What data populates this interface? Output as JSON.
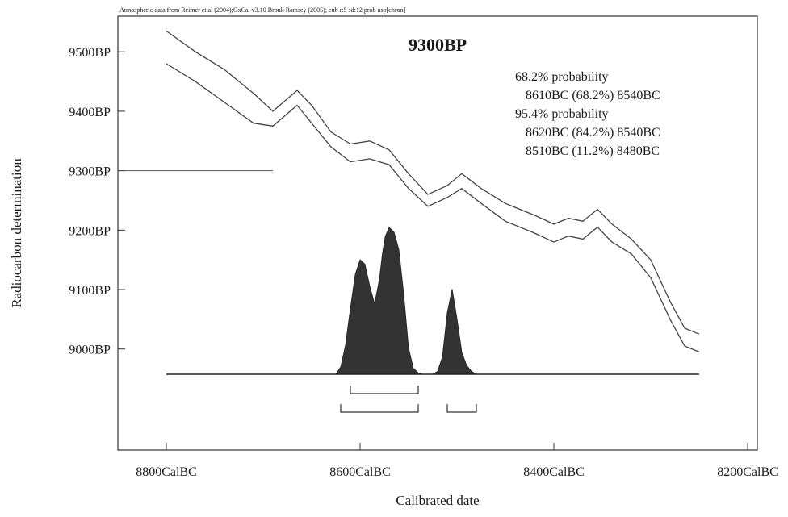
{
  "chart_data": {
    "type": "line",
    "credit": "Atmospheric data from Reimer et al (2004);OxCal v3.10 Bronk Ramsey (2005); cub r:5 sd:12 prob usp[chron]",
    "title": "9300BP",
    "xlabel": "Calibrated date",
    "ylabel": "Radiocarbon determination",
    "x_axis": {
      "domain": [
        8850,
        8190
      ],
      "reversed": true,
      "ticks": [
        8800,
        8600,
        8400,
        8200
      ],
      "tick_suffix": "CalBC"
    },
    "y_axis": {
      "domain": [
        8830,
        9560
      ],
      "ticks": [
        9000,
        9100,
        9200,
        9300,
        9400,
        9500
      ],
      "tick_suffix": "BP"
    },
    "stats": [
      {
        "text": "68.2% probability",
        "indent": false
      },
      {
        "text": "8610BC (68.2%) 8540BC",
        "indent": true
      },
      {
        "text": "95.4% probability",
        "indent": false
      },
      {
        "text": "8620BC (84.2%) 8540BC",
        "indent": true
      },
      {
        "text": "8510BC (11.2%) 8480BC",
        "indent": true
      }
    ],
    "measurement_bp": 9300,
    "measurement_line_end_bc": 8690,
    "curve": {
      "name": "calibration curve ±1σ",
      "x": [
        8800,
        8770,
        8740,
        8710,
        8690,
        8665,
        8650,
        8630,
        8610,
        8590,
        8570,
        8550,
        8530,
        8510,
        8495,
        8475,
        8450,
        8420,
        8400,
        8385,
        8370,
        8355,
        8340,
        8320,
        8300,
        8280,
        8265,
        8250
      ],
      "upper": [
        9535,
        9500,
        9470,
        9430,
        9400,
        9435,
        9410,
        9365,
        9345,
        9350,
        9335,
        9295,
        9260,
        9275,
        9295,
        9270,
        9245,
        9225,
        9210,
        9220,
        9215,
        9235,
        9210,
        9185,
        9150,
        9080,
        9035,
        9025
      ],
      "lower": [
        9480,
        9450,
        9415,
        9380,
        9375,
        9410,
        9380,
        9340,
        9315,
        9320,
        9310,
        9270,
        9240,
        9255,
        9270,
        9245,
        9215,
        9195,
        9180,
        9190,
        9185,
        9205,
        9180,
        9160,
        9120,
        9050,
        9005,
        8995
      ]
    },
    "distribution": {
      "baseline_x": [
        8800,
        8250
      ],
      "x": [
        8625,
        8620,
        8615,
        8610,
        8605,
        8600,
        8595,
        8590,
        8585,
        8580,
        8577,
        8574,
        8570,
        8565,
        8560,
        8555,
        8550,
        8545,
        8540,
        8535,
        8530,
        8525,
        8520,
        8515,
        8510,
        8505,
        8500,
        8495,
        8490,
        8485,
        8480,
        8475,
        8470
      ],
      "density": [
        0,
        0.05,
        0.2,
        0.45,
        0.68,
        0.78,
        0.75,
        0.6,
        0.48,
        0.65,
        0.82,
        0.94,
        1.0,
        0.97,
        0.85,
        0.55,
        0.18,
        0.04,
        0.01,
        0,
        0,
        0,
        0.02,
        0.12,
        0.42,
        0.58,
        0.38,
        0.15,
        0.06,
        0.02,
        0,
        0,
        0
      ]
    },
    "ranges_68": [
      [
        8610,
        8540
      ]
    ],
    "ranges_95": [
      [
        8620,
        8540
      ],
      [
        8510,
        8480
      ]
    ],
    "legend": "none",
    "grid": false
  }
}
